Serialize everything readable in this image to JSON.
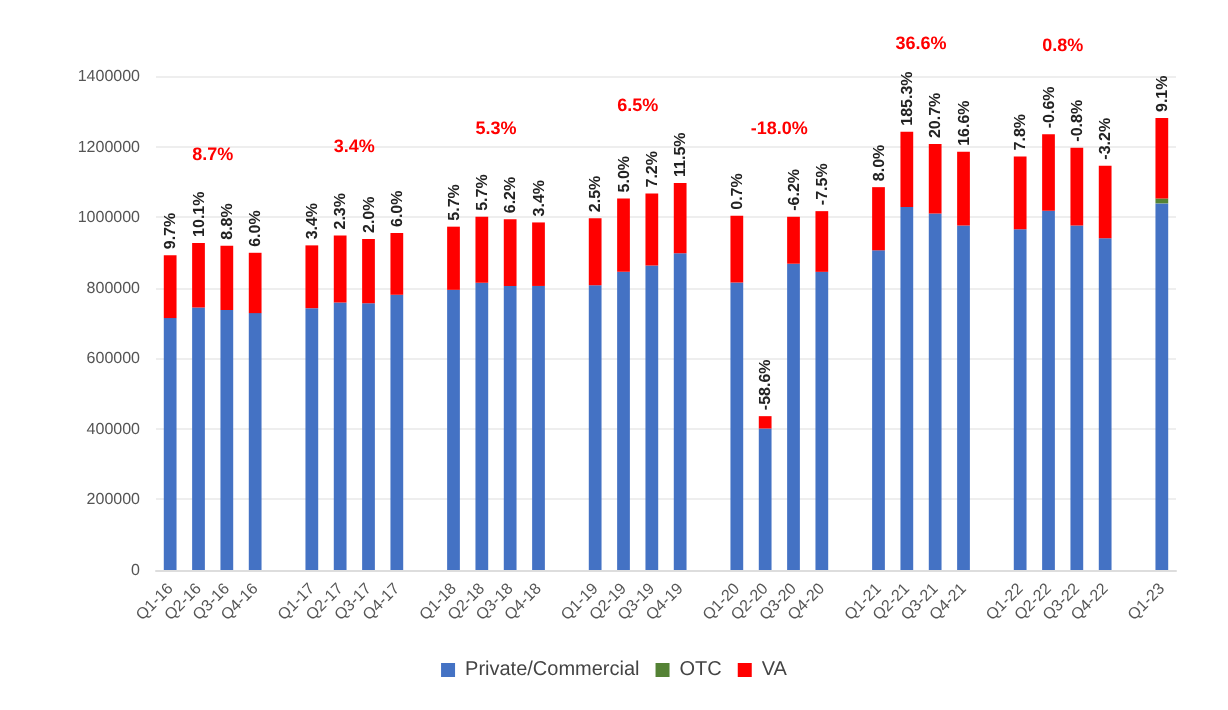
{
  "chart_data": {
    "type": "bar",
    "stacked": true,
    "categories": [
      "Q1-16",
      "Q2-16",
      "Q3-16",
      "Q4-16",
      null,
      "Q1-17",
      "Q2-17",
      "Q3-17",
      "Q4-17",
      null,
      "Q1-18",
      "Q2-18",
      "Q3-18",
      "Q4-18",
      null,
      "Q1-19",
      "Q2-19",
      "Q3-19",
      "Q4-19",
      null,
      "Q1-20",
      "Q2-20",
      "Q3-20",
      "Q4-20",
      null,
      "Q1-21",
      "Q2-21",
      "Q3-21",
      "Q4-21",
      null,
      "Q1-22",
      "Q2-22",
      "Q3-22",
      "Q4-22",
      null,
      "Q1-23"
    ],
    "series": [
      {
        "name": "Private/Commercial",
        "color": "#4472c4",
        "values": [
          714000,
          744000,
          737000,
          728000,
          null,
          742000,
          758000,
          756000,
          780000,
          null,
          794000,
          814000,
          805000,
          805000,
          null,
          807000,
          845000,
          863000,
          898000,
          null,
          815000,
          401000,
          868000,
          845000,
          null,
          906000,
          1029000,
          1010000,
          976000,
          null,
          966000,
          1018000,
          976000,
          940000,
          null,
          1039000
        ]
      },
      {
        "name": "OTC",
        "color": "#548235",
        "values": [
          null,
          null,
          null,
          null,
          null,
          null,
          null,
          null,
          null,
          null,
          null,
          null,
          null,
          null,
          null,
          null,
          null,
          null,
          null,
          null,
          null,
          null,
          null,
          null,
          null,
          null,
          null,
          null,
          null,
          null,
          null,
          null,
          null,
          null,
          null,
          14000
        ]
      },
      {
        "name": "VA",
        "color": "#ff0000",
        "values": [
          178000,
          183000,
          182000,
          171000,
          null,
          178000,
          190000,
          182000,
          175000,
          null,
          179000,
          187000,
          189000,
          180000,
          null,
          190000,
          208000,
          204000,
          199000,
          null,
          189000,
          35000,
          133000,
          172000,
          null,
          179000,
          213000,
          197000,
          209000,
          null,
          206000,
          217000,
          221000,
          206000,
          null,
          228000
        ]
      }
    ],
    "annotations": [
      "8.7%",
      "3.4%",
      "5.3%",
      "6.5%",
      "-18.0%",
      "36.6%",
      "0.8%",
      {
        "text": "9.7%",
        "x": "Q1-16",
        "y": 892000
      },
      {
        "text": "10.1%",
        "x": "Q2-16",
        "y": 927000
      },
      {
        "text": "8.8%",
        "x": "Q3-16",
        "y": 919000
      },
      {
        "text": "6.0%",
        "x": "Q4-16",
        "y": 899000
      },
      {
        "text": "3.4%",
        "x": "Q1-17",
        "y": 920000
      },
      {
        "text": "2.3%",
        "x": "Q2-17",
        "y": 948000
      },
      {
        "text": "2.0%",
        "x": "Q3-17",
        "y": 938000
      },
      {
        "text": "6.0%",
        "x": "Q4-17",
        "y": 955000
      },
      {
        "text": "5.7%",
        "x": "Q1-18",
        "y": 973000
      },
      {
        "text": "5.7%",
        "x": "Q2-18",
        "y": 1001000
      },
      {
        "text": "6.2%",
        "x": "Q3-18",
        "y": 994000
      },
      {
        "text": "3.4%",
        "x": "Q4-18",
        "y": 985000
      },
      {
        "text": "2.5%",
        "x": "Q1-19",
        "y": 997000
      },
      {
        "text": "5.0%",
        "x": "Q2-19",
        "y": 1053000
      },
      {
        "text": "7.2%",
        "x": "Q3-19",
        "y": 1067000
      },
      {
        "text": "11.5%",
        "x": "Q4-19",
        "y": 1097000
      },
      {
        "text": "0.7%",
        "x": "Q1-20",
        "y": 1004000
      },
      {
        "text": "-58.6%",
        "x": "Q2-20",
        "y": 436000
      },
      {
        "text": "-6.2%",
        "x": "Q3-20",
        "y": 1001000
      },
      {
        "text": "-7.5%",
        "x": "Q4-20",
        "y": 1017000
      },
      {
        "text": "8.0%",
        "x": "Q1-21",
        "y": 1085000
      },
      {
        "text": "185.3%",
        "x": "Q2-21",
        "y": 1242000
      },
      {
        "text": "20.7%",
        "x": "Q3-21",
        "y": 1207000
      },
      {
        "text": "16.6%",
        "x": "Q4-21",
        "y": 1185000
      },
      {
        "text": "7.8%",
        "x": "Q1-22",
        "y": 1172000
      },
      {
        "text": "-0.6%",
        "x": "Q2-22",
        "y": 1235000
      },
      {
        "text": "-0.8%",
        "x": "Q3-22",
        "y": 1197000
      },
      {
        "text": "-3.2%",
        "x": "Q4-22",
        "y": 1146000
      },
      {
        "text": "9.1%",
        "x": "Q1-23",
        "y": 1281000
      }
    ],
    "ylim": [
      0,
      1400000
    ],
    "yticks": [
      0,
      200000,
      400000,
      600000,
      800000,
      1000000,
      1200000,
      1400000
    ],
    "grid": "y",
    "legend": "bottom"
  }
}
